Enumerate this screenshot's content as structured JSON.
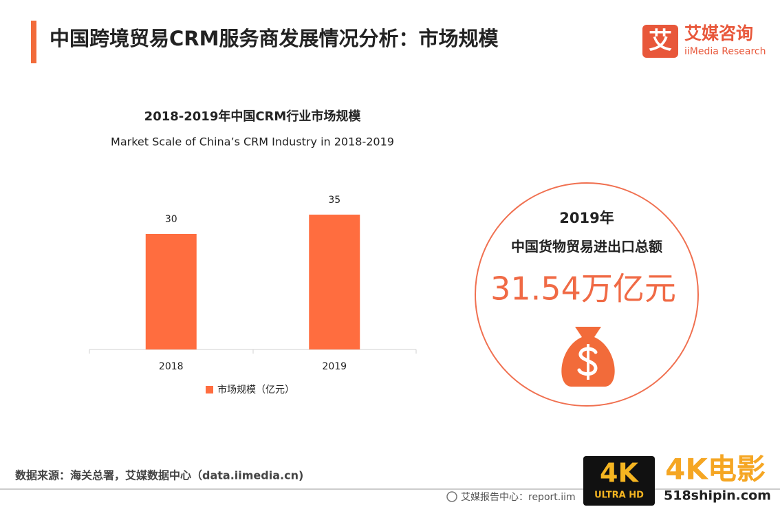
{
  "header": {
    "title": "中国跨境贸易CRM服务商发展情况分析：市场规模"
  },
  "logo": {
    "icon_text": "艾",
    "name": "艾媒咨询",
    "subname": "iiMedia Research"
  },
  "chart_data": {
    "type": "bar",
    "title": "2018-2019年中国CRM行业市场规模",
    "subtitle": "Market Scale of China’s CRM Industry in 2018-2019",
    "categories": [
      "2018",
      "2019"
    ],
    "series": [
      {
        "name": "市场规模（亿元）",
        "color": "#ff6d3f",
        "values": [
          30,
          35
        ]
      }
    ]
  },
  "callout": {
    "year": "2019年",
    "label": "中国货物贸易进出口总额",
    "value": "31.54万亿元"
  },
  "source": "数据来源：海关总署，艾媒数据中心（data.iimedia.cn)",
  "footer": "艾媒报告中心：report.iim",
  "watermark": {
    "badge": "4K",
    "badge_sub": "ULTRA HD",
    "name": "4K电影",
    "site": "518shipin.com"
  }
}
